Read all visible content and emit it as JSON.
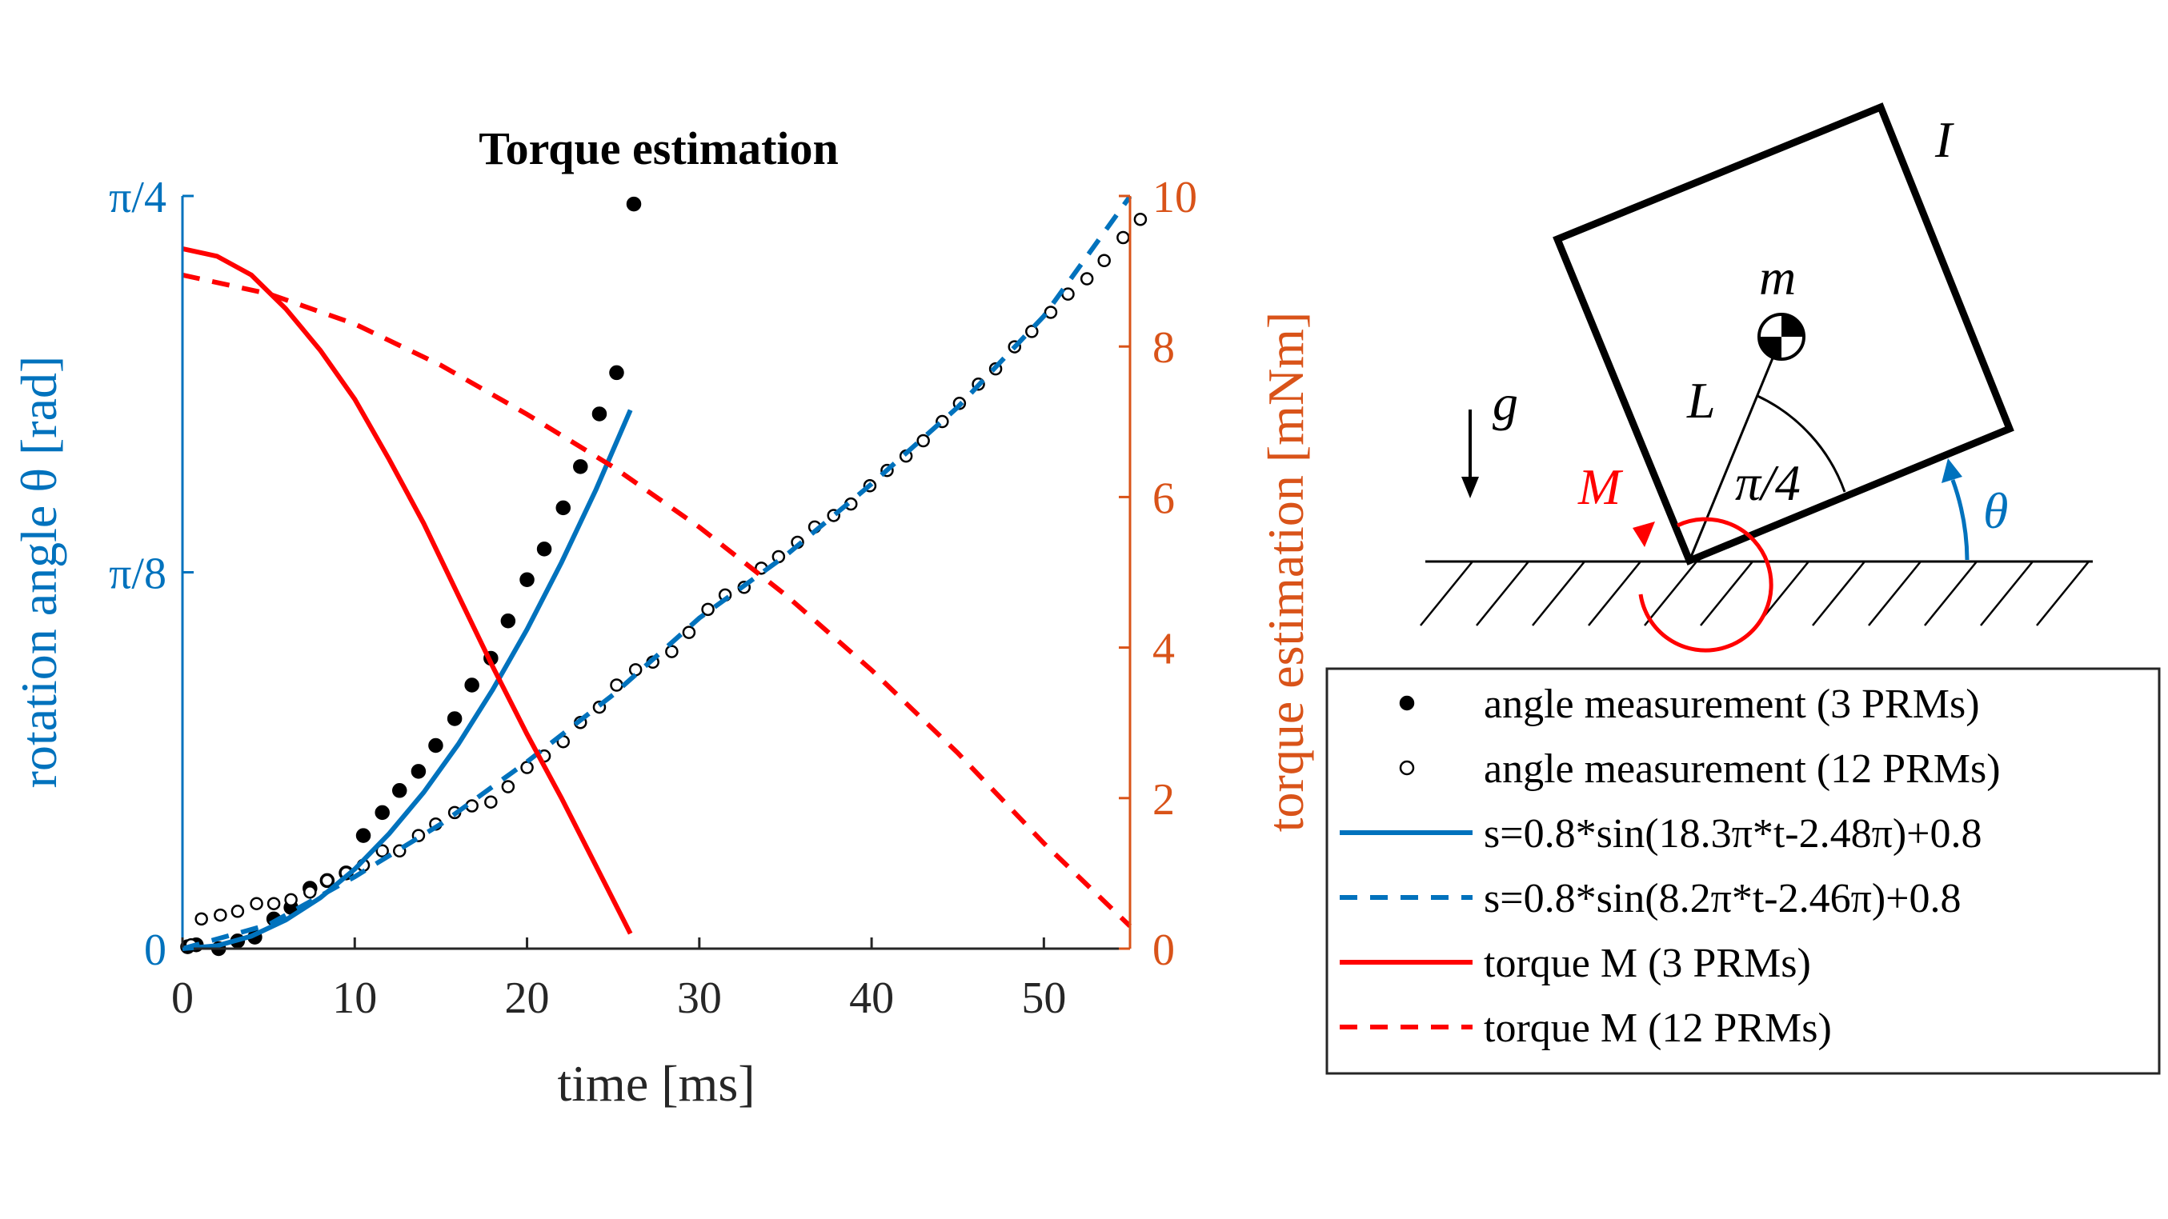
{
  "chart_data": {
    "type": "line",
    "title": "Torque estimation",
    "xlabel": "time [ms]",
    "ylabel_left": "rotation angle θ [rad]",
    "ylabel_right": "torque estimation [mNm]",
    "xlim": [
      0,
      55
    ],
    "ylim_left": [
      0,
      0.7854
    ],
    "ylim_right": [
      0,
      10
    ],
    "x_ticks": [
      "0",
      "10",
      "20",
      "30",
      "40",
      "50"
    ],
    "y_left_ticks": [
      "0",
      "π/8",
      "π/4"
    ],
    "y_right_ticks": [
      "0",
      "2",
      "4",
      "6",
      "8",
      "10"
    ],
    "grid": false,
    "legend_placement": "bottom-right, outside",
    "colors": {
      "left_axis": "#0072BD",
      "right_axis": "#D95319",
      "fit": "#0072BD",
      "torque": "#FF0000",
      "measurement": "#000000"
    },
    "series": [
      {
        "name": "angle measurement (3 PRMs)",
        "style": "filled-dot",
        "axis": "left",
        "x": [
          0.3,
          0.8,
          2.1,
          3.2,
          4.2,
          5.3,
          6.3,
          7.4,
          8.4,
          9.5,
          10.5,
          11.6,
          12.6,
          13.7,
          14.7,
          15.8,
          16.8,
          17.9,
          18.9,
          20.0,
          21.0,
          22.1,
          23.1,
          24.2,
          25.2,
          26.2
        ],
        "y": [
          0.002,
          0.004,
          0.0,
          0.008,
          0.012,
          0.031,
          0.043,
          0.063,
          0.071,
          0.079,
          0.118,
          0.142,
          0.165,
          0.185,
          0.212,
          0.24,
          0.275,
          0.303,
          0.342,
          0.385,
          0.417,
          0.46,
          0.503,
          0.558,
          0.601,
          0.777
        ]
      },
      {
        "name": "angle measurement (12 PRMs)",
        "style": "open-circle",
        "axis": "left",
        "x": [
          0.5,
          1.1,
          2.2,
          3.2,
          4.3,
          5.3,
          6.3,
          7.4,
          8.4,
          9.5,
          10.5,
          11.6,
          12.6,
          13.7,
          14.7,
          15.8,
          16.8,
          17.9,
          18.9,
          20.0,
          21.0,
          22.1,
          23.1,
          24.2,
          25.2,
          26.3,
          27.3,
          28.4,
          29.4,
          30.5,
          31.5,
          32.6,
          33.6,
          34.6,
          35.7,
          36.7,
          37.8,
          38.8,
          39.9,
          40.9,
          42.0,
          43.0,
          44.1,
          45.1,
          46.2,
          47.2,
          48.3,
          49.3,
          50.4,
          51.4,
          52.5,
          53.5,
          54.6,
          55.6
        ],
        "y": [
          0.004,
          0.031,
          0.035,
          0.039,
          0.047,
          0.047,
          0.051,
          0.059,
          0.071,
          0.079,
          0.087,
          0.102,
          0.102,
          0.118,
          0.13,
          0.142,
          0.149,
          0.153,
          0.169,
          0.189,
          0.201,
          0.216,
          0.236,
          0.252,
          0.275,
          0.291,
          0.299,
          0.31,
          0.33,
          0.354,
          0.369,
          0.377,
          0.397,
          0.409,
          0.424,
          0.44,
          0.452,
          0.464,
          0.483,
          0.499,
          0.514,
          0.53,
          0.55,
          0.569,
          0.589,
          0.605,
          0.628,
          0.644,
          0.664,
          0.683,
          0.699,
          0.718,
          0.742,
          0.761
        ]
      },
      {
        "name": "s=0.8*sin(18.3π*t-2.48π)+0.8",
        "style": "solid",
        "axis": "left",
        "x": [
          0,
          2,
          4,
          6,
          8,
          10,
          12,
          14,
          16,
          18,
          20,
          22,
          24,
          26
        ],
        "y": [
          0.0,
          0.003,
          0.013,
          0.03,
          0.053,
          0.083,
          0.12,
          0.163,
          0.213,
          0.27,
          0.333,
          0.403,
          0.479,
          0.562
        ]
      },
      {
        "name": "s=0.8*sin(8.2π*t-2.46π)+0.8",
        "style": "dashed",
        "axis": "left",
        "x": [
          0,
          5,
          10,
          15,
          20,
          25,
          30,
          35,
          40,
          45,
          50,
          55
        ],
        "y": [
          0.0,
          0.025,
          0.075,
          0.13,
          0.195,
          0.265,
          0.345,
          0.41,
          0.485,
          0.565,
          0.66,
          0.785
        ]
      },
      {
        "name": "torque M (3 PRMs)",
        "style": "solid",
        "axis": "right",
        "x": [
          0,
          2,
          4,
          6,
          8,
          10,
          12,
          14,
          16,
          18,
          20,
          22,
          24,
          26
        ],
        "y": [
          9.3,
          9.2,
          8.95,
          8.5,
          7.95,
          7.3,
          6.5,
          5.65,
          4.7,
          3.75,
          2.85,
          2.0,
          1.1,
          0.2
        ]
      },
      {
        "name": "torque M (12 PRMs)",
        "style": "dashed",
        "axis": "right",
        "x": [
          0,
          5,
          10,
          15,
          20,
          25,
          30,
          35,
          40,
          45,
          50,
          55
        ],
        "y": [
          8.95,
          8.7,
          8.3,
          7.75,
          7.1,
          6.4,
          5.6,
          4.7,
          3.7,
          2.6,
          1.4,
          0.3
        ]
      }
    ]
  },
  "diagram": {
    "labels": {
      "inertia": "I",
      "mass": "m",
      "gravity": "g",
      "length": "L",
      "moment": "M",
      "angle": "π/4",
      "theta": "θ"
    }
  }
}
